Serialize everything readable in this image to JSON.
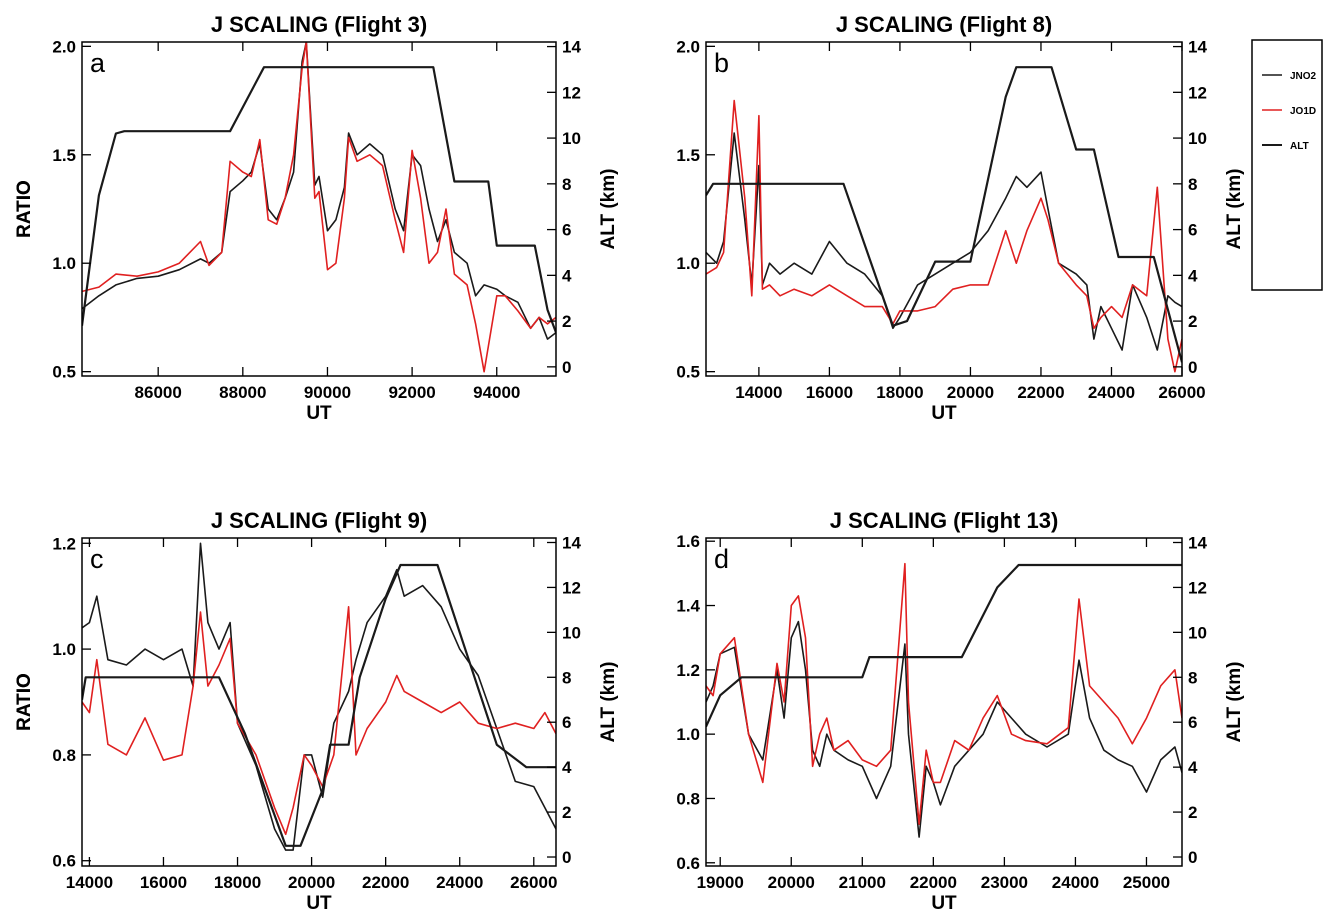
{
  "legend": {
    "items": [
      {
        "label": "JNO2",
        "color": "#1a1a1a"
      },
      {
        "label": "JO1D",
        "color": "#e02020"
      },
      {
        "label": "ALT",
        "color": "#1a1a1a"
      }
    ]
  },
  "colors": {
    "jno2": "#1a1a1a",
    "jo1d": "#e02020",
    "alt": "#1a1a1a"
  },
  "chart_data": [
    {
      "type": "line",
      "panel_label": "a",
      "title": "J SCALING (Flight 3)",
      "xlabel": "UT",
      "ylabel": "RATIO",
      "y2label": "ALT (km)",
      "xlim": [
        84200,
        95400
      ],
      "ylim": [
        0.48,
        2.02
      ],
      "y2lim": [
        -0.4,
        14.2
      ],
      "xticks": [
        86000,
        88000,
        90000,
        92000,
        94000
      ],
      "yticks": [
        0.5,
        1.0,
        1.5,
        2.0
      ],
      "ytick_labels": [
        "0.5",
        "1.0",
        "1.5",
        "2.0"
      ],
      "y2ticks": [
        0,
        2,
        4,
        6,
        8,
        10,
        12,
        14
      ],
      "series": [
        {
          "name": "JNO2",
          "axis": "left",
          "x": [
            84200,
            84600,
            85000,
            85500,
            86000,
            86500,
            87000,
            87200,
            87500,
            87700,
            88000,
            88200,
            88400,
            88600,
            88800,
            89000,
            89200,
            89400,
            89500,
            89700,
            89800,
            90000,
            90200,
            90400,
            90500,
            90700,
            91000,
            91300,
            91600,
            91800,
            92000,
            92200,
            92400,
            92600,
            92800,
            93000,
            93300,
            93500,
            93700,
            94000,
            94200,
            94500,
            94800,
            95000,
            95200,
            95400
          ],
          "y": [
            0.79,
            0.85,
            0.9,
            0.93,
            0.94,
            0.97,
            1.02,
            1.0,
            1.05,
            1.33,
            1.38,
            1.42,
            1.55,
            1.25,
            1.2,
            1.3,
            1.42,
            1.93,
            2.02,
            1.36,
            1.4,
            1.15,
            1.2,
            1.35,
            1.6,
            1.5,
            1.55,
            1.5,
            1.25,
            1.15,
            1.5,
            1.45,
            1.25,
            1.1,
            1.2,
            1.05,
            1.0,
            0.85,
            0.9,
            0.88,
            0.85,
            0.82,
            0.7,
            0.75,
            0.65,
            0.68
          ]
        },
        {
          "name": "JO1D",
          "axis": "left",
          "x": [
            84200,
            84600,
            85000,
            85500,
            86000,
            86500,
            87000,
            87200,
            87500,
            87700,
            88000,
            88200,
            88400,
            88600,
            88800,
            89000,
            89200,
            89400,
            89500,
            89700,
            89800,
            90000,
            90200,
            90400,
            90500,
            90700,
            91000,
            91300,
            91600,
            91800,
            92000,
            92200,
            92400,
            92600,
            92800,
            93000,
            93300,
            93500,
            93700,
            94000,
            94200,
            94500,
            94800,
            95000,
            95200,
            95400
          ],
          "y": [
            0.87,
            0.89,
            0.95,
            0.94,
            0.96,
            1.0,
            1.1,
            0.99,
            1.05,
            1.47,
            1.42,
            1.4,
            1.57,
            1.2,
            1.18,
            1.3,
            1.5,
            1.9,
            2.02,
            1.3,
            1.33,
            0.97,
            1.0,
            1.3,
            1.58,
            1.47,
            1.5,
            1.45,
            1.2,
            1.05,
            1.52,
            1.3,
            1.0,
            1.05,
            1.25,
            0.95,
            0.9,
            0.72,
            0.5,
            0.85,
            0.85,
            0.78,
            0.7,
            0.75,
            0.72,
            0.75
          ]
        },
        {
          "name": "ALT",
          "axis": "right",
          "x": [
            84200,
            84600,
            85000,
            85200,
            87700,
            88500,
            92500,
            93000,
            93800,
            94000,
            94500,
            94900,
            95200,
            95400
          ],
          "y": [
            1.8,
            7.5,
            10.2,
            10.3,
            10.3,
            13.1,
            13.1,
            8.1,
            8.1,
            5.3,
            5.3,
            5.3,
            2.5,
            1.5
          ]
        }
      ]
    },
    {
      "type": "line",
      "panel_label": "b",
      "title": "J SCALING (Flight 8)",
      "xlabel": "UT",
      "ylabel": "RATIO",
      "y2label": "ALT (km)",
      "xlim": [
        12500,
        26000
      ],
      "ylim": [
        0.48,
        2.02
      ],
      "y2lim": [
        -0.4,
        14.2
      ],
      "xticks": [
        14000,
        16000,
        18000,
        20000,
        22000,
        24000,
        26000
      ],
      "yticks": [
        0.5,
        1.0,
        1.5,
        2.0
      ],
      "ytick_labels": [
        "0.5",
        "1.0",
        "1.5",
        "2.0"
      ],
      "y2ticks": [
        0,
        2,
        4,
        6,
        8,
        10,
        12,
        14
      ],
      "series": [
        {
          "name": "JNO2",
          "axis": "left",
          "x": [
            12500,
            12800,
            13000,
            13300,
            13600,
            13800,
            14000,
            14100,
            14300,
            14600,
            15000,
            15500,
            16000,
            16500,
            17000,
            17500,
            17800,
            18000,
            18500,
            19000,
            19500,
            20000,
            20500,
            21000,
            21300,
            21600,
            22000,
            22200,
            22500,
            23000,
            23300,
            23500,
            23700,
            24000,
            24300,
            24600,
            25000,
            25300,
            25600,
            25800,
            26000
          ],
          "y": [
            1.05,
            1.0,
            1.1,
            1.6,
            1.2,
            0.9,
            1.45,
            0.9,
            1.0,
            0.95,
            1.0,
            0.95,
            1.1,
            1.0,
            0.95,
            0.85,
            0.7,
            0.75,
            0.9,
            0.95,
            1.0,
            1.05,
            1.15,
            1.3,
            1.4,
            1.35,
            1.42,
            1.25,
            1.0,
            0.95,
            0.9,
            0.65,
            0.8,
            0.7,
            0.6,
            0.9,
            0.75,
            0.6,
            0.85,
            0.82,
            0.8
          ]
        },
        {
          "name": "JO1D",
          "axis": "left",
          "x": [
            12500,
            12800,
            13000,
            13300,
            13600,
            13800,
            14000,
            14100,
            14300,
            14600,
            15000,
            15500,
            16000,
            16500,
            17000,
            17500,
            17800,
            18000,
            18500,
            19000,
            19500,
            20000,
            20500,
            21000,
            21300,
            21600,
            22000,
            22200,
            22500,
            23000,
            23300,
            23500,
            23700,
            24000,
            24300,
            24600,
            25000,
            25300,
            25600,
            25800,
            26000
          ],
          "y": [
            0.95,
            0.98,
            1.05,
            1.75,
            1.3,
            0.85,
            1.68,
            0.88,
            0.9,
            0.85,
            0.88,
            0.85,
            0.9,
            0.85,
            0.8,
            0.8,
            0.72,
            0.78,
            0.78,
            0.8,
            0.88,
            0.9,
            0.9,
            1.15,
            1.0,
            1.15,
            1.3,
            1.2,
            1.0,
            0.9,
            0.85,
            0.7,
            0.75,
            0.8,
            0.75,
            0.9,
            0.85,
            1.35,
            0.65,
            0.5,
            0.65
          ]
        },
        {
          "name": "ALT",
          "axis": "right",
          "x": [
            12500,
            12700,
            16400,
            17800,
            18200,
            19000,
            20000,
            21000,
            21300,
            22300,
            23000,
            23500,
            24200,
            25200,
            25600,
            26000
          ],
          "y": [
            7.5,
            8.0,
            8.0,
            1.8,
            2.0,
            4.6,
            4.6,
            11.8,
            13.1,
            13.1,
            9.5,
            9.5,
            4.8,
            4.8,
            2.5,
            0.2
          ]
        }
      ]
    },
    {
      "type": "line",
      "panel_label": "c",
      "title": "J SCALING (Flight 9)",
      "xlabel": "UT",
      "ylabel": "RATIO",
      "y2label": "ALT (km)",
      "xlim": [
        13800,
        26600
      ],
      "ylim": [
        0.59,
        1.21
      ],
      "y2lim": [
        -0.4,
        14.2
      ],
      "xticks": [
        14000,
        16000,
        18000,
        20000,
        22000,
        24000,
        26000
      ],
      "yticks": [
        0.6,
        0.8,
        1.0,
        1.2
      ],
      "ytick_labels": [
        "0.6",
        "0.8",
        "1.0",
        "1.2"
      ],
      "y2ticks": [
        0,
        2,
        4,
        6,
        8,
        10,
        12,
        14
      ],
      "series": [
        {
          "name": "JNO2",
          "axis": "left",
          "x": [
            13800,
            14000,
            14200,
            14500,
            15000,
            15500,
            16000,
            16500,
            16800,
            17000,
            17200,
            17500,
            17800,
            18000,
            18500,
            19000,
            19300,
            19500,
            19800,
            20000,
            20300,
            20600,
            21000,
            21200,
            21500,
            22000,
            22300,
            22500,
            23000,
            23500,
            24000,
            24500,
            25000,
            25500,
            26000,
            26300,
            26600
          ],
          "y": [
            1.04,
            1.05,
            1.1,
            0.98,
            0.97,
            1.0,
            0.98,
            1.0,
            0.93,
            1.2,
            1.05,
            1.0,
            1.05,
            0.86,
            0.78,
            0.66,
            0.62,
            0.62,
            0.8,
            0.8,
            0.72,
            0.86,
            0.92,
            0.98,
            1.05,
            1.1,
            1.15,
            1.1,
            1.12,
            1.08,
            1.0,
            0.95,
            0.85,
            0.75,
            0.74,
            0.7,
            0.66
          ]
        },
        {
          "name": "JO1D",
          "axis": "left",
          "x": [
            13800,
            14000,
            14200,
            14500,
            15000,
            15500,
            16000,
            16500,
            16800,
            17000,
            17200,
            17500,
            17800,
            18000,
            18500,
            19000,
            19300,
            19500,
            19800,
            20000,
            20300,
            20600,
            21000,
            21200,
            21500,
            22000,
            22300,
            22500,
            23000,
            23500,
            24000,
            24500,
            25000,
            25500,
            26000,
            26300,
            26600
          ],
          "y": [
            0.9,
            0.88,
            0.98,
            0.82,
            0.8,
            0.87,
            0.79,
            0.8,
            0.93,
            1.07,
            0.93,
            0.97,
            1.02,
            0.86,
            0.8,
            0.7,
            0.65,
            0.7,
            0.8,
            0.78,
            0.74,
            0.8,
            1.08,
            0.8,
            0.85,
            0.9,
            0.95,
            0.92,
            0.9,
            0.88,
            0.9,
            0.86,
            0.85,
            0.86,
            0.85,
            0.88,
            0.84
          ]
        },
        {
          "name": "ALT",
          "axis": "right",
          "x": [
            13800,
            13900,
            17500,
            18200,
            19300,
            19700,
            20300,
            20500,
            21000,
            21300,
            22000,
            22400,
            23400,
            24000,
            25000,
            25800,
            26600
          ],
          "y": [
            7.0,
            8.0,
            8.0,
            5.5,
            0.5,
            0.5,
            3.0,
            5.0,
            5.0,
            8.0,
            11.5,
            13.0,
            13.0,
            10.0,
            5.0,
            4.0,
            4.0
          ]
        }
      ]
    },
    {
      "type": "line",
      "panel_label": "d",
      "title": "J SCALING (Flight 13)",
      "xlabel": "UT",
      "ylabel": "RATIO",
      "y2label": "ALT (km)",
      "xlim": [
        18800,
        25500
      ],
      "ylim": [
        0.59,
        1.61
      ],
      "y2lim": [
        -0.4,
        14.2
      ],
      "xticks": [
        19000,
        20000,
        21000,
        22000,
        23000,
        24000,
        25000
      ],
      "yticks": [
        0.6,
        0.8,
        1.0,
        1.2,
        1.4,
        1.6
      ],
      "ytick_labels": [
        "0.6",
        "0.8",
        "1.0",
        "1.2",
        "1.4",
        "1.6"
      ],
      "y2ticks": [
        0,
        2,
        4,
        6,
        8,
        10,
        12,
        14
      ],
      "series": [
        {
          "name": "JNO2",
          "axis": "left",
          "x": [
            18800,
            18900,
            19000,
            19200,
            19400,
            19600,
            19800,
            19900,
            20000,
            20100,
            20200,
            20300,
            20400,
            20500,
            20600,
            20800,
            21000,
            21200,
            21400,
            21600,
            21650,
            21800,
            21900,
            22000,
            22100,
            22300,
            22500,
            22700,
            22900,
            23100,
            23300,
            23600,
            23900,
            24050,
            24200,
            24400,
            24600,
            24800,
            25000,
            25200,
            25400,
            25500
          ],
          "y": [
            1.1,
            1.15,
            1.25,
            1.27,
            1.0,
            0.92,
            1.2,
            1.05,
            1.3,
            1.35,
            1.2,
            0.95,
            0.9,
            1.0,
            0.95,
            0.92,
            0.9,
            0.8,
            0.9,
            1.28,
            1.0,
            0.68,
            0.9,
            0.85,
            0.78,
            0.9,
            0.95,
            1.0,
            1.1,
            1.05,
            1.0,
            0.96,
            1.0,
            1.23,
            1.05,
            0.95,
            0.92,
            0.9,
            0.82,
            0.92,
            0.96,
            0.88
          ]
        },
        {
          "name": "JO1D",
          "axis": "left",
          "x": [
            18800,
            18900,
            19000,
            19200,
            19400,
            19600,
            19800,
            19900,
            20000,
            20100,
            20200,
            20300,
            20400,
            20500,
            20600,
            20800,
            21000,
            21200,
            21400,
            21600,
            21650,
            21800,
            21900,
            22000,
            22100,
            22300,
            22500,
            22700,
            22900,
            23100,
            23300,
            23600,
            23900,
            24050,
            24200,
            24400,
            24600,
            24800,
            25000,
            25200,
            25400,
            25500
          ],
          "y": [
            1.15,
            1.12,
            1.25,
            1.3,
            1.0,
            0.85,
            1.22,
            1.1,
            1.4,
            1.43,
            1.3,
            0.9,
            1.0,
            1.05,
            0.95,
            0.98,
            0.92,
            0.9,
            0.95,
            1.53,
            1.1,
            0.72,
            0.95,
            0.85,
            0.85,
            0.98,
            0.95,
            1.05,
            1.12,
            1.0,
            0.98,
            0.97,
            1.02,
            1.42,
            1.15,
            1.1,
            1.05,
            0.97,
            1.05,
            1.15,
            1.2,
            1.05
          ]
        },
        {
          "name": "ALT",
          "axis": "right",
          "x": [
            18800,
            19000,
            19300,
            20000,
            21000,
            21100,
            21500,
            22400,
            22900,
            23200,
            25500
          ],
          "y": [
            5.8,
            7.2,
            8.0,
            8.0,
            8.0,
            8.9,
            8.9,
            8.9,
            12.0,
            13.0,
            13.0
          ]
        }
      ]
    }
  ]
}
